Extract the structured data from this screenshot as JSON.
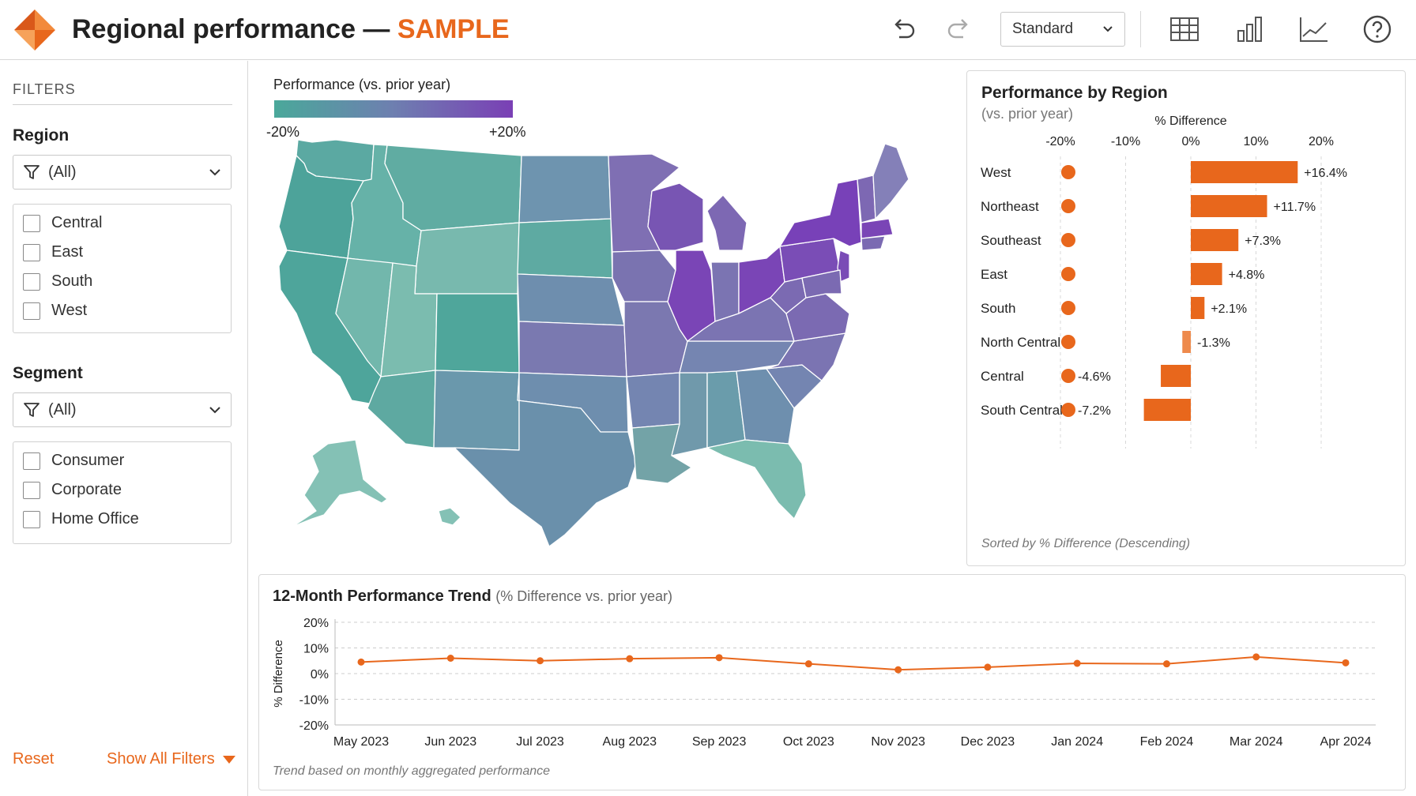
{
  "header": {
    "title": "Regional performance — ",
    "title_highlight": "SAMPLE",
    "view_select": "Standard",
    "icons": [
      "undo-icon",
      "redo-icon",
      "table-icon",
      "bar-chart-icon",
      "line-chart-icon",
      "help-icon"
    ]
  },
  "sidebar": {
    "filters_title": "FILTERS",
    "region": {
      "label": "Region",
      "dropdown": "(All)",
      "options": [
        "Central",
        "East",
        "South",
        "West"
      ]
    },
    "segment": {
      "label": "Segment",
      "dropdown": "(All)",
      "options": [
        "Consumer",
        "Corporate",
        "Home Office"
      ]
    },
    "reset": "Reset",
    "show_all": "Show All Filters"
  },
  "map": {
    "legend_title": "Performance (vs. prior year)",
    "legend_min": "-20%",
    "legend_max": "+20%"
  },
  "bar_panel": {
    "title": "Performance by Region",
    "subtitle": "(vs. prior year)",
    "footer": "Sorted by % Difference (Descending)"
  },
  "trend_panel": {
    "title": "12-Month Performance Trend",
    "subtitle": "(% Difference vs. prior year)",
    "footer": "Trend based on monthly aggregated performance"
  },
  "chart_data": [
    {
      "type": "bar",
      "title": "Performance by Region",
      "xlabel": "% Difference",
      "xlim": [
        -20,
        20
      ],
      "xticks": [
        "-20%",
        "-10%",
        "0%",
        "10%",
        "20%"
      ],
      "marker_value": -20,
      "categories": [
        "West",
        "Northeast",
        "Southeast",
        "East",
        "South",
        "North Central",
        "Central",
        "South Central"
      ],
      "values": [
        16.4,
        11.7,
        7.3,
        4.8,
        2.1,
        -1.3,
        -4.6,
        -7.2
      ],
      "labels": [
        "+16.4%",
        "+11.7%",
        "+7.3%",
        "+4.8%",
        "+2.1%",
        "-1.3%",
        "-4.6%",
        "-7.2%"
      ],
      "bar_color": "#e8671c"
    },
    {
      "type": "line",
      "title": "12-Month Performance Trend",
      "ylabel": "% Difference",
      "ylim": [
        -20,
        20
      ],
      "yticks": [
        "20%",
        "10%",
        "0%",
        "-10%",
        "-20%"
      ],
      "x": [
        "May 2023",
        "Jun 2023",
        "Jul 2023",
        "Aug 2023",
        "Sep 2023",
        "Oct 2023",
        "Nov 2023",
        "Dec 2023",
        "Jan 2024",
        "Feb 2024",
        "Mar 2024",
        "Apr 2024"
      ],
      "values": [
        4.5,
        6.0,
        5.0,
        5.8,
        6.2,
        3.8,
        1.5,
        2.5,
        4.0,
        3.8,
        6.5,
        4.2
      ],
      "line_color": "#e8671c"
    }
  ]
}
